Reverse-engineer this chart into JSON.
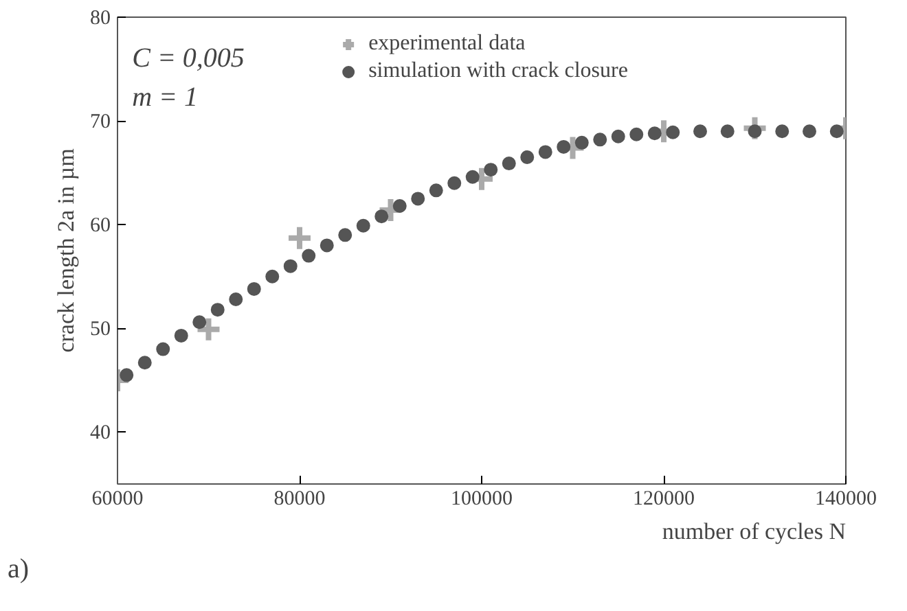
{
  "chart_data": {
    "type": "scatter",
    "xlabel": "number of cycles N",
    "ylabel": "crack length 2a in µm",
    "annotations": [
      "C = 0,005",
      "m = 1",
      "a)"
    ],
    "xlim": [
      60000,
      140000
    ],
    "ylim": [
      35,
      80
    ],
    "xticks": [
      60000,
      80000,
      100000,
      120000,
      140000
    ],
    "yticks": [
      40,
      50,
      60,
      70,
      80
    ],
    "grid": false,
    "legend": "top",
    "series": [
      {
        "name": "experimental data",
        "color": "#aaaaaa",
        "marker": "cross",
        "x": [
          60000,
          70000,
          80000,
          90000,
          100000,
          110000,
          120000,
          130000,
          140000
        ],
        "values": [
          45.0,
          49.9,
          58.7,
          61.4,
          64.4,
          67.4,
          69.0,
          69.3,
          69.3
        ]
      },
      {
        "name": "simulation with crack closure",
        "color": "#555555",
        "marker": "circle",
        "x": [
          61000,
          63000,
          65000,
          67000,
          69000,
          71000,
          73000,
          75000,
          77000,
          79000,
          81000,
          83000,
          85000,
          87000,
          89000,
          91000,
          93000,
          95000,
          97000,
          99000,
          101000,
          103000,
          105000,
          107000,
          109000,
          111000,
          113000,
          115000,
          117000,
          119000,
          121000,
          124000,
          127000,
          130000,
          133000,
          136000,
          139000
        ],
        "values": [
          45.5,
          46.7,
          48.0,
          49.3,
          50.6,
          51.8,
          52.8,
          53.8,
          55.0,
          56.0,
          57.0,
          58.0,
          59.0,
          59.9,
          60.8,
          61.8,
          62.5,
          63.3,
          64.0,
          64.6,
          65.3,
          65.9,
          66.5,
          67.0,
          67.5,
          67.9,
          68.2,
          68.5,
          68.7,
          68.8,
          68.9,
          69.0,
          69.0,
          69.0,
          69.0,
          69.0,
          69.0
        ]
      }
    ]
  }
}
